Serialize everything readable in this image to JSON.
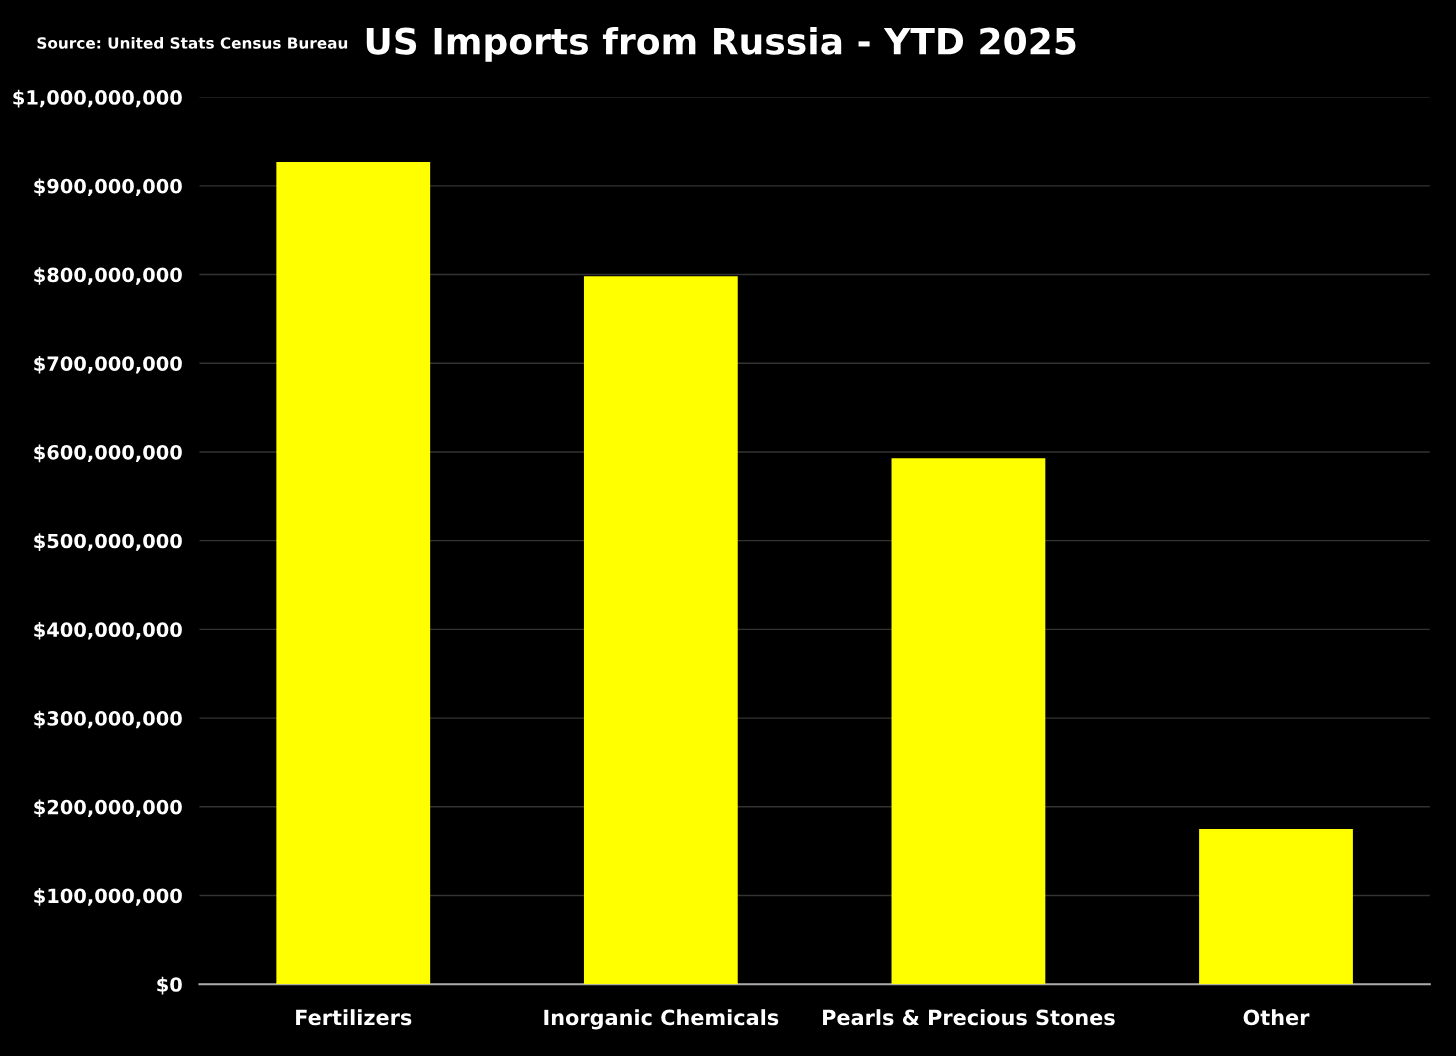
{
  "chart_data": {
    "type": "bar",
    "title": "US Imports from Russia - YTD 2025",
    "categories": [
      "Fertilizers",
      "Inorganic Chemicals",
      "Pearls & Precious Stones",
      "Other"
    ],
    "values": [
      927000000,
      798000000,
      593000000,
      175000000
    ],
    "color": "#ffff00",
    "ylim": [
      0,
      1000000000
    ],
    "yticks": [
      {
        "value": 0,
        "label": "$0"
      },
      {
        "value": 100000000,
        "label": "$100,000,000"
      },
      {
        "value": 200000000,
        "label": "$200,000,000"
      },
      {
        "value": 300000000,
        "label": "$300,000,000"
      },
      {
        "value": 400000000,
        "label": "$400,000,000"
      },
      {
        "value": 500000000,
        "label": "$500,000,000"
      },
      {
        "value": 600000000,
        "label": "$600,000,000"
      },
      {
        "value": 700000000,
        "label": "$700,000,000"
      },
      {
        "value": 800000000,
        "label": "$800,000,000"
      },
      {
        "value": 900000000,
        "label": "$900,000,000"
      },
      {
        "value": 1000000000,
        "label": "$1,000,000,000"
      }
    ],
    "grid": "y",
    "annotations": [
      "Source: United Stats Census Bureau"
    ]
  }
}
